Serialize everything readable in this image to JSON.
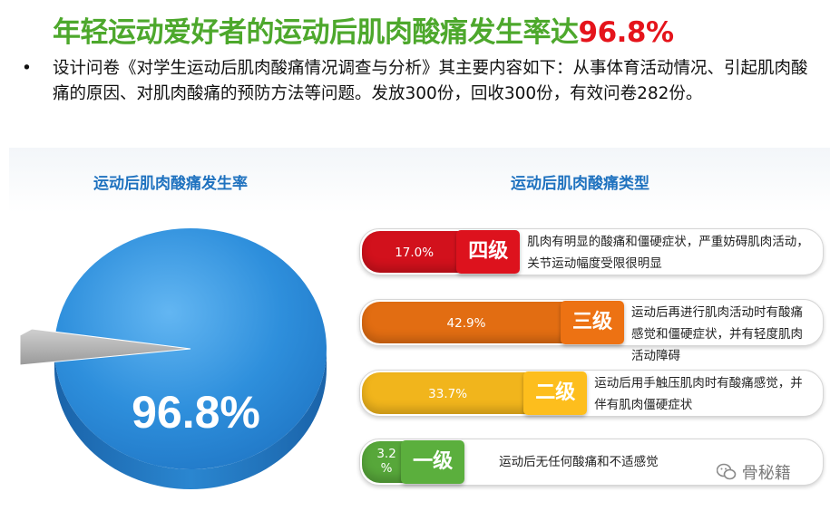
{
  "header": {
    "title_main": "年轻运动爱好者的运动后肌肉酸痛发生率达",
    "title_highlight": "96.8%"
  },
  "intro": {
    "bullet": "•",
    "text": "设计问卷《对学生运动后肌肉酸痛情况调查与分析》其主要内容如下：从事体育活动情况、引起肌肉酸痛的原因、对肌肉酸痛的预防方法等问题。发放300份，回收300份，有效问卷282份。"
  },
  "colors": {
    "title_green": "#4da82c",
    "highlight_red": "#e5141b",
    "subtitle_blue": "#1f72bf",
    "pie_blue": "#2a8ad8",
    "pie_gray": "#b5b5b5",
    "level4": "#d2111c",
    "level3": "#e26d12",
    "level2": "#f1b51c",
    "level1": "#57a73a"
  },
  "chart_data": [
    {
      "type": "pie",
      "title": "运动后肌肉酸痛发生率",
      "slices": [
        {
          "value": 96.8,
          "label": "96.8%"
        },
        {
          "value": 3.2,
          "label": ""
        }
      ]
    },
    {
      "type": "bar",
      "title": "运动后肌肉酸痛类型",
      "categories": [
        "四级",
        "三级",
        "二级",
        "一级"
      ],
      "values": [
        17.0,
        42.9,
        33.7,
        3.2
      ],
      "value_labels": [
        "17.0%",
        "42.9%",
        "33.7%",
        "3.2\n%"
      ],
      "descriptions": [
        "肌肉有明显的酸痛和僵硬症状，严重妨碍肌肉活动，关节运动幅度受限很明显",
        "运动后再进行肌肉活动时有酸痛感觉和僵硬症状，并有轻度肌肉活动障碍",
        "运动后用手触压肌肉时有酸痛感觉，并伴有肌肉僵硬症状",
        "运动后无任何酸痛和不适感觉"
      ]
    }
  ],
  "watermark": {
    "icon": "wechat-icon",
    "text": "骨秘籍"
  }
}
